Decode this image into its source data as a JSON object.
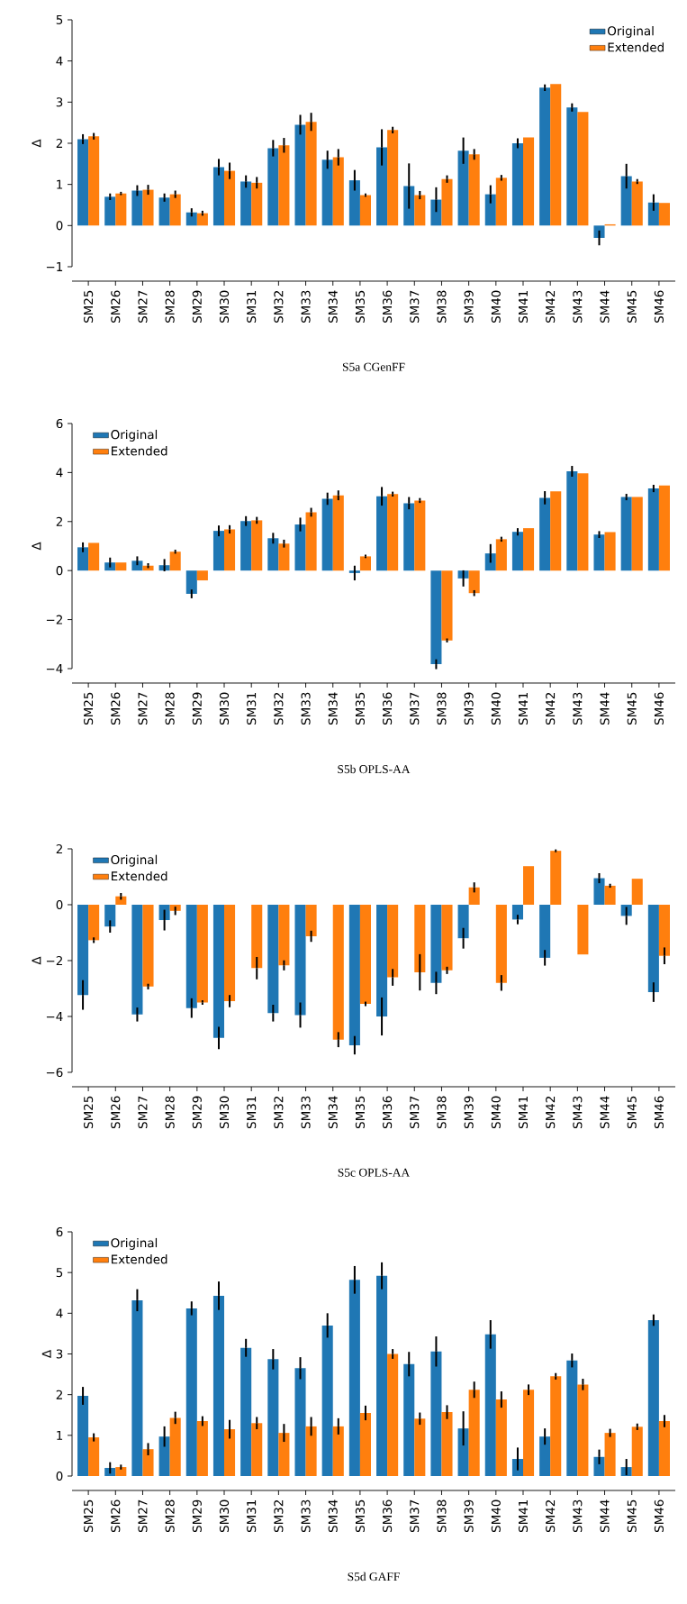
{
  "chart_data": [
    {
      "type": "bar",
      "title": "S5a CGenFF",
      "ylabel": "Δ",
      "legend": "top right",
      "categories": [
        "SM25",
        "SM26",
        "SM27",
        "SM28",
        "SM29",
        "SM30",
        "SM31",
        "SM32",
        "SM33",
        "SM34",
        "SM35",
        "SM36",
        "SM37",
        "SM38",
        "SM39",
        "SM40",
        "SM41",
        "SM42",
        "SM43",
        "SM44",
        "SM45",
        "SM46"
      ],
      "ylim": [
        -1,
        5
      ],
      "yticks": [
        {
          "value": -1,
          "label": "−1"
        },
        0,
        1,
        2,
        3,
        4,
        5
      ],
      "series": [
        {
          "name": "Original",
          "color": "#1f77b4",
          "values": [
            2.1,
            0.7,
            0.85,
            0.68,
            0.32,
            1.42,
            1.07,
            1.88,
            2.45,
            1.6,
            1.1,
            1.9,
            0.96,
            0.63,
            1.82,
            0.76,
            2.0,
            3.35,
            2.87,
            -0.3,
            1.2,
            0.56
          ],
          "errors": [
            0.12,
            0.08,
            0.13,
            0.1,
            0.1,
            0.2,
            0.15,
            0.2,
            0.24,
            0.22,
            0.25,
            0.44,
            0.55,
            0.3,
            0.32,
            0.22,
            0.12,
            0.08,
            0.1,
            0.18,
            0.3,
            0.2
          ]
        },
        {
          "name": "Extended",
          "color": "#ff7f0e",
          "values": [
            2.17,
            0.78,
            0.87,
            0.76,
            0.3,
            1.33,
            1.04,
            1.95,
            2.52,
            1.66,
            0.74,
            2.32,
            0.74,
            1.13,
            1.73,
            1.16,
            2.14,
            3.44,
            2.76,
            0.03,
            1.07,
            0.55
          ],
          "errors": [
            0.08,
            0.04,
            0.12,
            0.09,
            0.06,
            0.2,
            0.14,
            0.18,
            0.22,
            0.2,
            0.04,
            0.08,
            0.1,
            0.09,
            0.13,
            0.07,
            null,
            null,
            null,
            null,
            0.06,
            null
          ]
        }
      ]
    },
    {
      "type": "bar",
      "title": "S5b OPLS-AA",
      "ylabel": "Δ",
      "legend": "top left",
      "categories": [
        "SM25",
        "SM26",
        "SM27",
        "SM28",
        "SM29",
        "SM30",
        "SM31",
        "SM32",
        "SM33",
        "SM34",
        "SM35",
        "SM36",
        "SM37",
        "SM38",
        "SM39",
        "SM40",
        "SM41",
        "SM42",
        "SM43",
        "SM44",
        "SM45",
        "SM46"
      ],
      "ylim": [
        -4,
        6
      ],
      "yticks": [
        {
          "value": -4,
          "label": "−4"
        },
        {
          "value": -2,
          "label": "−2"
        },
        0,
        2,
        4,
        6
      ],
      "series": [
        {
          "name": "Original",
          "color": "#1f77b4",
          "values": [
            0.95,
            0.33,
            0.4,
            0.22,
            -0.95,
            1.62,
            2.02,
            1.32,
            1.88,
            2.93,
            -0.1,
            3.03,
            2.75,
            -3.82,
            -0.32,
            0.7,
            1.58,
            2.97,
            4.05,
            1.47,
            3.0,
            3.35
          ],
          "errors": [
            0.2,
            0.2,
            0.18,
            0.25,
            0.18,
            0.22,
            0.2,
            0.22,
            0.28,
            0.25,
            0.3,
            0.38,
            0.25,
            0.2,
            0.33,
            0.38,
            0.15,
            0.27,
            0.22,
            0.14,
            0.13,
            0.15
          ]
        },
        {
          "name": "Extended",
          "color": "#ff7f0e",
          "values": [
            1.13,
            0.33,
            0.2,
            0.77,
            -0.4,
            1.68,
            2.05,
            1.1,
            2.38,
            3.07,
            0.58,
            3.12,
            2.86,
            -2.85,
            -0.92,
            1.28,
            1.73,
            3.23,
            3.97,
            1.57,
            3.0,
            3.47
          ],
          "errors": [
            null,
            null,
            0.1,
            0.08,
            null,
            0.17,
            0.14,
            0.16,
            0.18,
            0.2,
            0.07,
            0.1,
            0.1,
            0.08,
            0.12,
            0.1,
            null,
            null,
            null,
            null,
            null,
            null
          ]
        }
      ]
    },
    {
      "type": "bar",
      "title": "S5c OPLS-AA",
      "ylabel": "Δ",
      "legend": "top left",
      "categories": [
        "SM25",
        "SM26",
        "SM27",
        "SM28",
        "SM29",
        "SM30",
        "SM31",
        "SM32",
        "SM33",
        "SM34",
        "SM35",
        "SM36",
        "SM37",
        "SM38",
        "SM39",
        "SM40",
        "SM41",
        "SM42",
        "SM43",
        "SM44",
        "SM45",
        "SM46"
      ],
      "ylim": [
        -6,
        2
      ],
      "yticks": [
        {
          "value": -6,
          "label": "−6"
        },
        {
          "value": -4,
          "label": "−4"
        },
        {
          "value": -2,
          "label": "−2"
        },
        0,
        2
      ],
      "series": [
        {
          "name": "Original",
          "color": "#1f77b4",
          "values": [
            -3.23,
            -0.78,
            -3.93,
            -0.55,
            -3.7,
            -4.77,
            null,
            -3.88,
            -3.95,
            null,
            -5.03,
            -4.0,
            null,
            -2.8,
            -1.2,
            null,
            -0.53,
            -1.9,
            null,
            0.95,
            -0.4,
            -3.13
          ],
          "errors": [
            0.53,
            0.22,
            0.25,
            0.37,
            0.35,
            0.4,
            null,
            0.3,
            0.45,
            null,
            0.33,
            0.68,
            null,
            0.4,
            0.37,
            null,
            0.17,
            0.28,
            null,
            0.18,
            0.32,
            0.35
          ]
        },
        {
          "name": "Extended",
          "color": "#ff7f0e",
          "values": [
            -1.27,
            0.3,
            -2.93,
            -0.22,
            -3.5,
            -3.45,
            -2.27,
            -2.17,
            -1.13,
            -4.83,
            -3.55,
            -2.6,
            -2.42,
            -2.35,
            0.62,
            -2.8,
            1.38,
            1.93,
            -1.78,
            0.68,
            0.93,
            -1.83
          ],
          "errors": [
            0.1,
            0.12,
            0.1,
            0.15,
            0.08,
            0.22,
            0.4,
            0.18,
            0.2,
            0.27,
            0.08,
            0.3,
            0.65,
            0.13,
            0.18,
            0.28,
            null,
            0.05,
            null,
            0.07,
            null,
            0.3
          ]
        }
      ]
    },
    {
      "type": "bar",
      "title": "S5d GAFF",
      "ylabel": "Δ",
      "legend": "top left",
      "categories": [
        "SM25",
        "SM26",
        "SM27",
        "SM28",
        "SM29",
        "SM30",
        "SM31",
        "SM32",
        "SM33",
        "SM34",
        "SM35",
        "SM36",
        "SM37",
        "SM38",
        "SM39",
        "SM40",
        "SM41",
        "SM42",
        "SM43",
        "SM44",
        "SM45",
        "SM46"
      ],
      "ylim": [
        0,
        6
      ],
      "yticks": [
        0,
        1,
        2,
        3,
        4,
        5,
        6
      ],
      "series": [
        {
          "name": "Original",
          "color": "#1f77b4",
          "values": [
            1.97,
            0.2,
            4.32,
            0.97,
            4.12,
            4.43,
            3.15,
            2.87,
            2.65,
            3.7,
            4.82,
            4.92,
            2.75,
            3.06,
            1.17,
            3.48,
            0.42,
            0.97,
            2.84,
            0.47,
            0.22,
            3.83
          ],
          "errors": [
            0.22,
            0.14,
            0.27,
            0.25,
            0.17,
            0.35,
            0.22,
            0.25,
            0.27,
            0.3,
            0.34,
            0.33,
            0.3,
            0.37,
            0.42,
            0.35,
            0.28,
            0.2,
            0.17,
            0.18,
            0.2,
            0.14
          ]
        },
        {
          "name": "Extended",
          "color": "#ff7f0e",
          "values": [
            0.95,
            0.22,
            0.66,
            1.43,
            1.35,
            1.15,
            1.3,
            1.06,
            1.22,
            1.22,
            1.55,
            3.0,
            1.41,
            1.57,
            2.12,
            1.88,
            2.12,
            2.45,
            2.25,
            1.06,
            1.21,
            1.35
          ],
          "errors": [
            0.1,
            0.06,
            0.15,
            0.15,
            0.12,
            0.23,
            0.15,
            0.22,
            0.23,
            0.2,
            0.18,
            0.12,
            0.15,
            0.17,
            0.2,
            0.2,
            0.13,
            0.08,
            0.14,
            0.1,
            0.08,
            0.15
          ]
        }
      ]
    }
  ]
}
